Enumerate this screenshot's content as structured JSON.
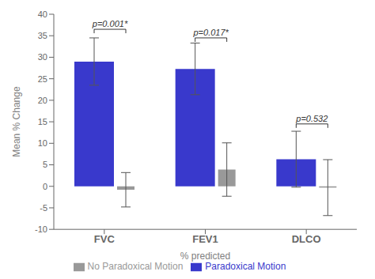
{
  "chart_data": {
    "type": "bar",
    "categories": [
      "FVC",
      "FEV1",
      "DLCO"
    ],
    "series": [
      {
        "name": "Paradoxical Motion",
        "color": "#3939CC",
        "values": [
          29.0,
          27.3,
          6.3
        ],
        "errors": [
          5.5,
          6.0,
          6.5
        ]
      },
      {
        "name": "No Paradoxical Motion",
        "color": "#999999",
        "values": [
          -0.8,
          3.9,
          -0.3
        ],
        "errors": [
          4.0,
          6.2,
          6.5
        ]
      }
    ],
    "xlabel": "% predicted",
    "ylabel": "Mean % Change",
    "ylim": [
      -10,
      40
    ],
    "yticks": [
      -10,
      -5,
      0,
      5,
      10,
      15,
      20,
      25,
      30,
      35,
      40
    ],
    "grid": false,
    "legend": "bottom",
    "annotations": [
      {
        "text": "p=0.001*",
        "category": "FVC",
        "y": 36.5
      },
      {
        "text": "p=0.017*",
        "category": "FEV1",
        "y": 34.5
      },
      {
        "text": "p=0.532",
        "category": "DLCO",
        "y": 14.5
      }
    ]
  }
}
